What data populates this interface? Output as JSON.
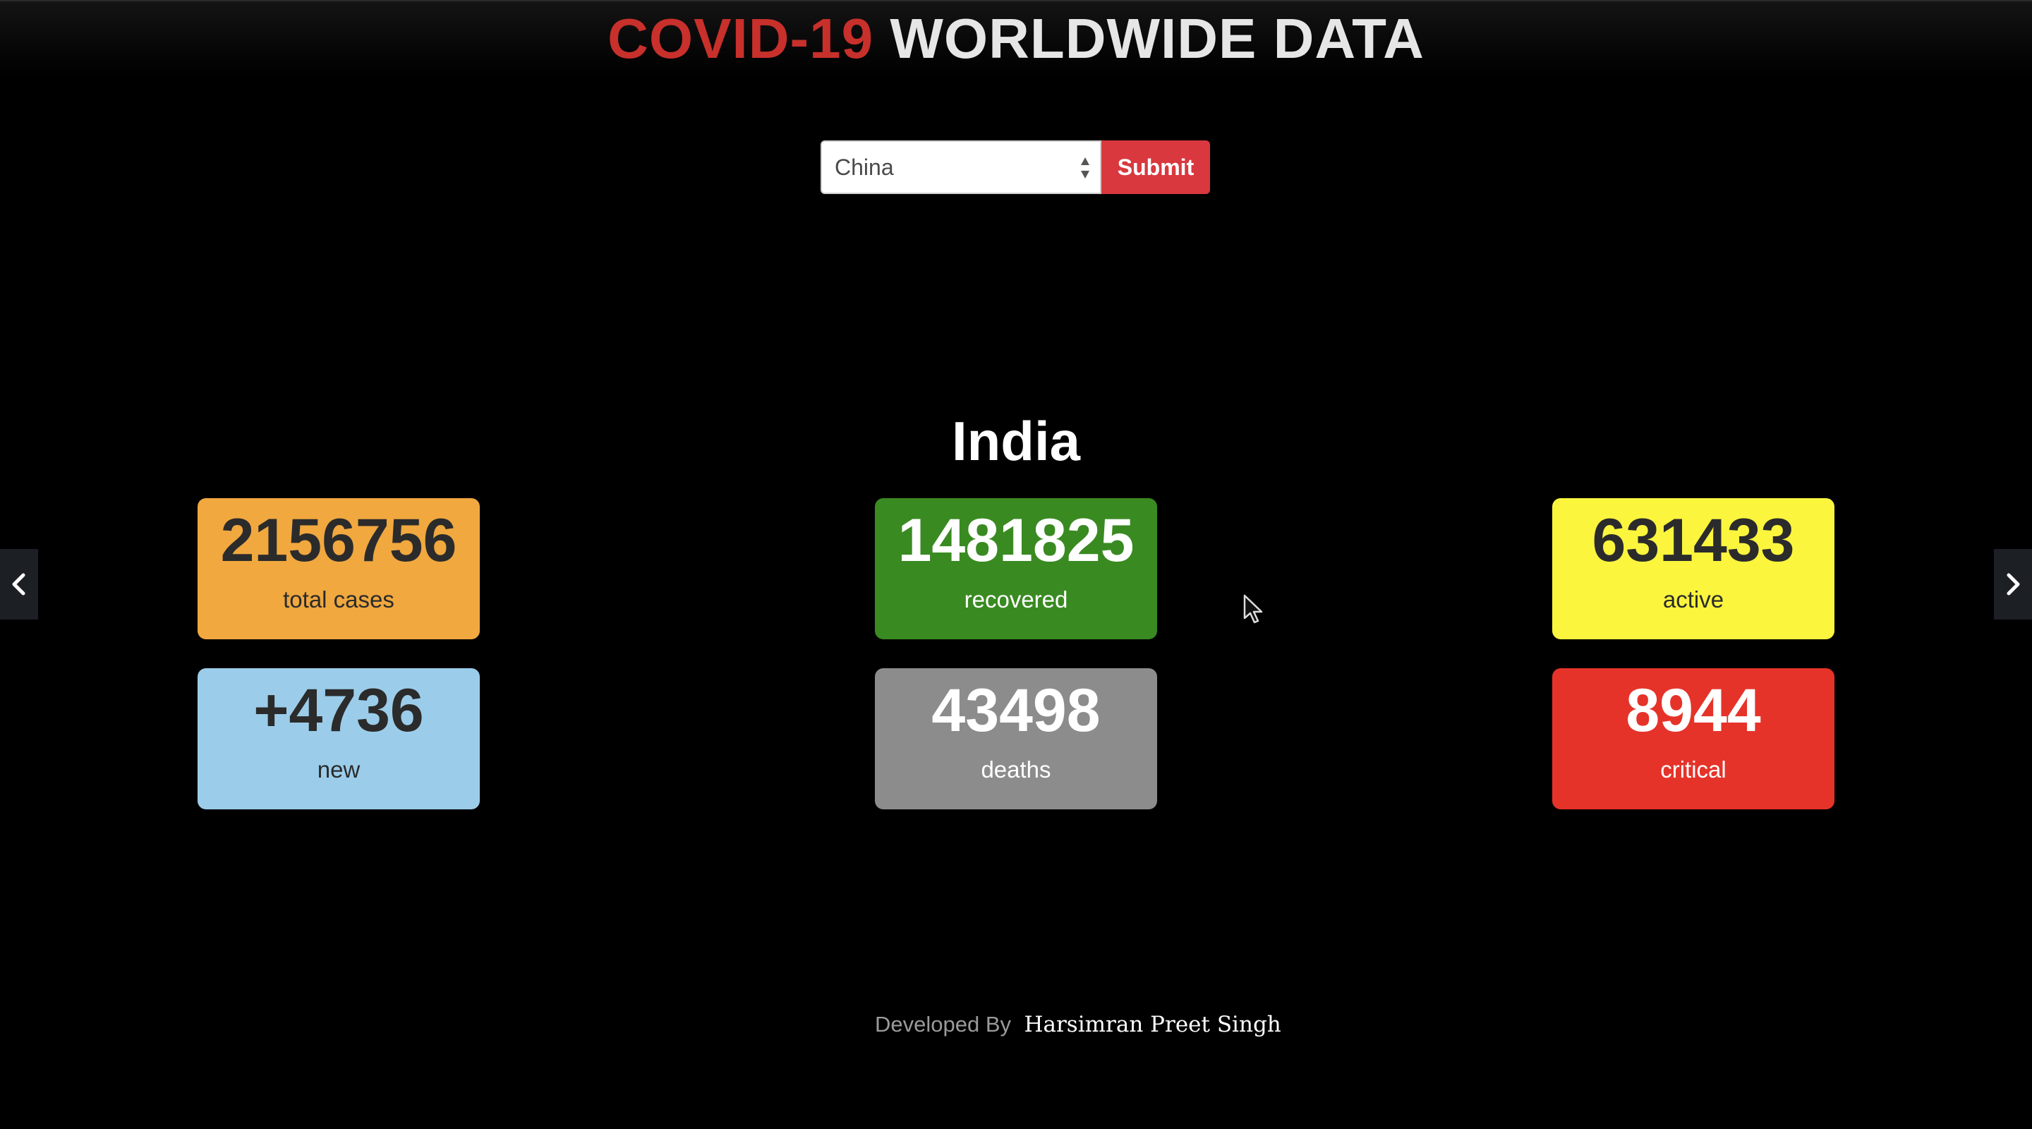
{
  "header": {
    "title_part1": "COVID-19",
    "title_part2": "WORLDWIDE DATA"
  },
  "form": {
    "selected_country": "China",
    "submit_label": "Submit"
  },
  "country": "India",
  "stats": {
    "total_cases": {
      "value": "2156756",
      "label": "total cases"
    },
    "recovered": {
      "value": "1481825",
      "label": "recovered"
    },
    "active": {
      "value": "631433",
      "label": "active"
    },
    "new": {
      "value": "+4736",
      "label": "new"
    },
    "deaths": {
      "value": "43498",
      "label": "deaths"
    },
    "critical": {
      "value": "8944",
      "label": "critical"
    }
  },
  "colors": {
    "title_red": "#c8302b",
    "submit": "#d9383f",
    "total_cases": "#f0a83f",
    "recovered": "#3a8a22",
    "active": "#fbf53e",
    "new": "#9bcdea",
    "deaths": "#8c8c8c",
    "critical": "#e5332a"
  },
  "icons": {
    "prev": "chevron-left-icon",
    "next": "chevron-right-icon",
    "select": "select-arrows-icon",
    "pointer": "mouse-cursor-icon"
  },
  "footer": {
    "developed_by": "Developed By",
    "author": "Harsimran Preet Singh"
  }
}
